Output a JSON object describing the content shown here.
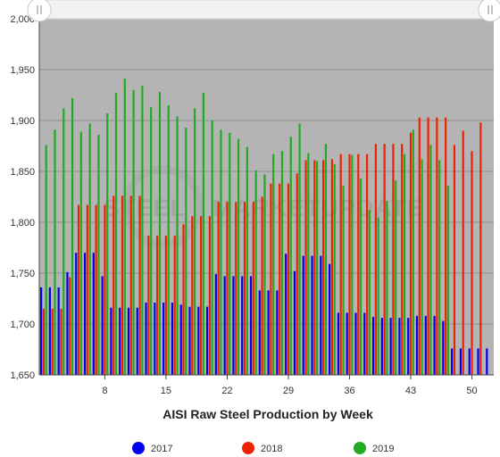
{
  "watermark": {
    "text_left": "STEEL",
    "text_right": "MARKETUPDATE"
  },
  "chart_data": {
    "type": "bar",
    "title": "AISI Raw Steel Production by Week",
    "xlabel": "",
    "ylabel": "",
    "xlim": [
      1,
      52
    ],
    "ylim": [
      1650,
      2000
    ],
    "x_ticks": [
      8,
      15,
      22,
      29,
      36,
      43,
      50
    ],
    "y_ticks": [
      "1,650",
      "1,700",
      "1,750",
      "1,800",
      "1,850",
      "1,900",
      "1,950",
      "2,000"
    ],
    "y_tick_values": [
      1650,
      1700,
      1750,
      1800,
      1850,
      1900,
      1950,
      2000
    ],
    "grid": true,
    "legend_position": "bottom",
    "background": "#b4b4b4",
    "series": [
      {
        "name": "2017",
        "color": "#0000ee",
        "values": [
          1736,
          1736,
          1736,
          1751,
          1770,
          1770,
          1770,
          1747,
          1716,
          1716,
          1716,
          1716,
          1721,
          1721,
          1721,
          1721,
          1719,
          1717,
          1717,
          1717,
          1749,
          1747,
          1747,
          1747,
          1747,
          1733,
          1733,
          1733,
          1769,
          1752,
          1767,
          1767,
          1767,
          1759,
          1711,
          1711,
          1711,
          1711,
          1707,
          1706,
          1706,
          1706,
          1706,
          1708,
          1708,
          1708,
          1703,
          1676,
          1676,
          1676,
          1676,
          1676
        ]
      },
      {
        "name": "2018",
        "color": "#ee2200",
        "values": [
          1715,
          1715,
          1715,
          1746,
          1817,
          1817,
          1817,
          1817,
          1826,
          1826,
          1826,
          1826,
          1787,
          1787,
          1787,
          1787,
          1798,
          1806,
          1806,
          1806,
          1820,
          1820,
          1820,
          1820,
          1820,
          1825,
          1838,
          1838,
          1838,
          1848,
          1861,
          1861,
          1861,
          1862,
          1867,
          1867,
          1867,
          1867,
          1877,
          1877,
          1877,
          1877,
          1888,
          1903,
          1903,
          1903,
          1903,
          1876,
          1890,
          1870,
          1898
        ]
      },
      {
        "name": "2019",
        "color": "#22aa22",
        "values": [
          1876,
          1891,
          1912,
          1922,
          1889,
          1897,
          1886,
          1907,
          1927,
          1941,
          1930,
          1934,
          1913,
          1928,
          1915,
          1904,
          1893,
          1912,
          1927,
          1900,
          1891,
          1888,
          1882,
          1874,
          1851,
          1847,
          1867,
          1870,
          1884,
          1897,
          1868,
          1860,
          1877,
          1857,
          1836,
          1866,
          1843,
          1812,
          1805,
          1821,
          1841,
          1867,
          1891,
          1862,
          1876,
          1861,
          1836
        ]
      }
    ]
  }
}
